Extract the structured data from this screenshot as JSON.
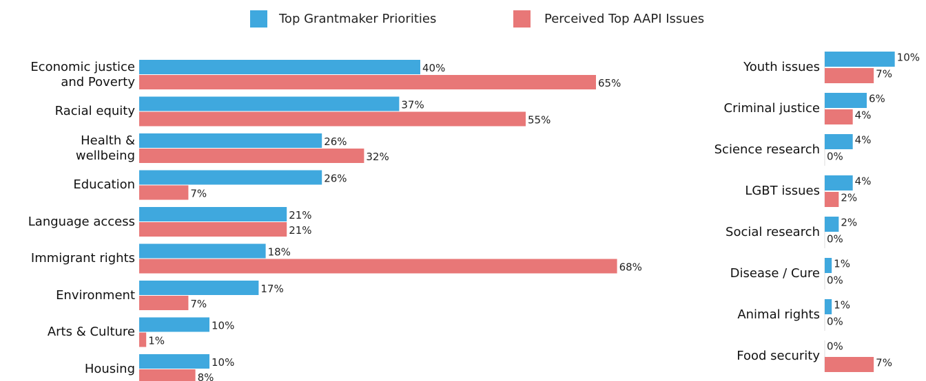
{
  "chart_data": [
    {
      "type": "bar",
      "orientation": "horizontal",
      "categories": [
        "Economic justice\nand Poverty",
        "Racial equity",
        "Health &\nwellbeing",
        "Education",
        "Language access",
        "Immigrant rights",
        "Environment",
        "Arts & Culture",
        "Housing"
      ],
      "series": [
        {
          "name": "Top Grantmaker Priorities",
          "color": "#3fa8de",
          "values": [
            40,
            37,
            26,
            26,
            21,
            18,
            17,
            10,
            10
          ],
          "value_labels": [
            "40%",
            "37%",
            "26%",
            "26%",
            "21%",
            "18%",
            "17%",
            "10%",
            "10%"
          ]
        },
        {
          "name": "Perceived Top AAPI Issues",
          "color": "#e87777",
          "values": [
            65,
            55,
            32,
            7,
            21,
            68,
            7,
            1,
            8
          ],
          "value_labels": [
            "65%",
            "55%",
            "32%",
            "7%",
            "21%",
            "68%",
            "7%",
            "1%",
            "8%"
          ]
        }
      ],
      "xlim": [
        0,
        70
      ]
    },
    {
      "type": "bar",
      "orientation": "horizontal",
      "categories": [
        "Youth issues",
        "Criminal justice",
        "Science research",
        "LGBT issues",
        "Social research",
        "Disease / Cure",
        "Animal rights",
        "Food security"
      ],
      "series": [
        {
          "color": "#3fa8de",
          "values": [
            10,
            6,
            4,
            4,
            2,
            1,
            1,
            0
          ],
          "value_labels": [
            "10%",
            "6%",
            "4%",
            "4%",
            "2%",
            "1%",
            "1%",
            "0%"
          ]
        },
        {
          "color": "#e87777",
          "values": [
            7,
            4,
            0,
            2,
            0,
            0,
            0,
            7
          ],
          "value_labels": [
            "7%",
            "4%",
            "0%",
            "2%",
            "0%",
            "0%",
            "0%",
            "7%"
          ]
        }
      ],
      "xlim": [
        0,
        12
      ]
    }
  ]
}
